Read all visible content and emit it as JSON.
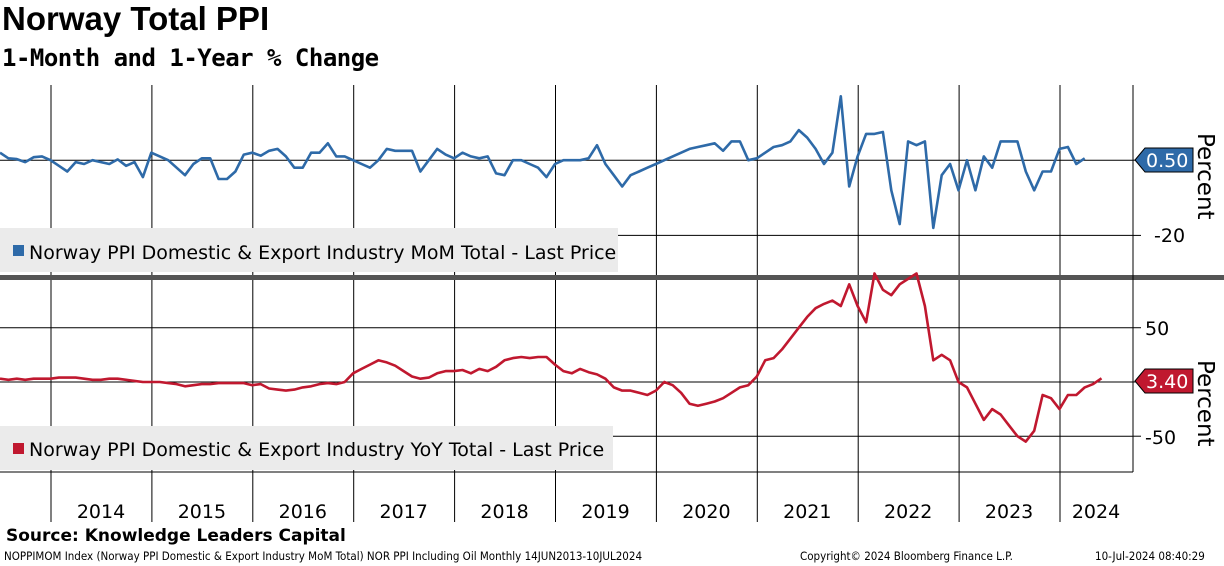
{
  "title": "Norway Total PPI",
  "subtitle": "1-Month and 1-Year % Change",
  "source": "Source: Knowledge Leaders Capital",
  "footer": {
    "left": "NOPPIMOM Index (Norway PPI Domestic & Export Industry MoM Total) NOR PPI Including Oil  Monthly 14JUN2013-10JUL2024",
    "center": "Copyright© 2024 Bloomberg Finance L.P.",
    "right": "10-Jul-2024 08:40:29"
  },
  "colors": {
    "mom": "#2e6aa8",
    "yoy": "#c0182f"
  },
  "chart_data": [
    {
      "type": "line",
      "name": "Norway PPI Domestic & Export Industry MoM Total - Last Price",
      "ylabel": "Percent",
      "ylim": [
        -30,
        20
      ],
      "yticks": [
        "-20"
      ],
      "gridlines": [
        0,
        -20
      ],
      "last_value": "0.50",
      "start": "2013-07",
      "frequency": "monthly",
      "values": [
        2,
        0.5,
        0.3,
        -0.5,
        0.8,
        1,
        0,
        -1.5,
        -3,
        -0.5,
        -1,
        0,
        -0.5,
        -1,
        0.2,
        -1.5,
        -0.5,
        -4.5,
        2,
        1,
        0,
        -2,
        -4,
        -1,
        0.5,
        0.5,
        -5,
        -5,
        -3,
        1.5,
        2,
        1.2,
        2.5,
        3,
        1,
        -2,
        -2,
        2,
        2,
        4.5,
        1,
        1,
        0,
        -1,
        -2,
        0,
        3,
        2.5,
        2.5,
        2.5,
        -3,
        0,
        3,
        1.5,
        0.5,
        2,
        1,
        0.5,
        1,
        -3.5,
        -4,
        0,
        0,
        -1,
        -2,
        -4.5,
        -1,
        0,
        0,
        0,
        0.5,
        4,
        -1,
        -4,
        -7,
        -4,
        -3,
        -2,
        -1,
        0,
        1,
        2,
        3,
        3.5,
        4,
        4.5,
        2.5,
        5,
        5,
        0,
        0.5,
        2,
        3.5,
        4,
        5,
        8,
        6,
        3,
        -1,
        2,
        17,
        -7,
        1,
        7,
        7,
        7.5,
        -8,
        -17,
        5,
        4,
        5,
        -18,
        -4,
        -1,
        -8,
        0,
        -8,
        1,
        -2,
        5,
        5,
        5,
        -3,
        -8,
        -3,
        -3,
        3,
        3.5,
        -1,
        0.5
      ]
    },
    {
      "type": "line",
      "name": "Norway PPI Domestic & Export Industry YoY Total - Last Price",
      "ylabel": "Percent",
      "ylim": [
        -83,
        94
      ],
      "yticks": [
        "50",
        "-50"
      ],
      "gridlines": [
        50,
        0,
        -50
      ],
      "last_value": "3.40",
      "start": "2013-07",
      "frequency": "monthly",
      "values": [
        3,
        2,
        3,
        2,
        3,
        3,
        3,
        4,
        4,
        4,
        3,
        2,
        2,
        3,
        3,
        2,
        1,
        0,
        0,
        0,
        -1,
        -2,
        -4,
        -3,
        -2,
        -2,
        -1,
        -1,
        -1,
        -1,
        -3,
        -2,
        -6,
        -7,
        -8,
        -7,
        -5,
        -4,
        -2,
        -1,
        -2,
        0,
        8,
        12,
        16,
        20,
        18,
        15,
        10,
        5,
        3,
        4,
        8,
        10,
        10,
        11,
        8,
        12,
        10,
        14,
        20,
        22,
        23,
        22,
        23,
        23,
        16,
        10,
        8,
        12,
        9,
        7,
        3,
        -5,
        -8,
        -8,
        -10,
        -12,
        -8,
        0,
        -3,
        -10,
        -20,
        -22,
        -20,
        -18,
        -15,
        -10,
        -5,
        -3,
        5,
        20,
        22,
        30,
        40,
        50,
        60,
        68,
        72,
        75,
        70,
        90,
        70,
        55,
        100,
        85,
        80,
        90,
        95,
        100,
        70,
        20,
        25,
        20,
        0,
        -5,
        -20,
        -35,
        -25,
        -30,
        -40,
        -50,
        -55,
        -45,
        -12,
        -15,
        -25,
        -12,
        -12,
        -5,
        -2,
        3.4
      ]
    }
  ],
  "x_labels": [
    "2014",
    "2015",
    "2016",
    "2017",
    "2018",
    "2019",
    "2020",
    "2021",
    "2022",
    "2023",
    "2024"
  ]
}
